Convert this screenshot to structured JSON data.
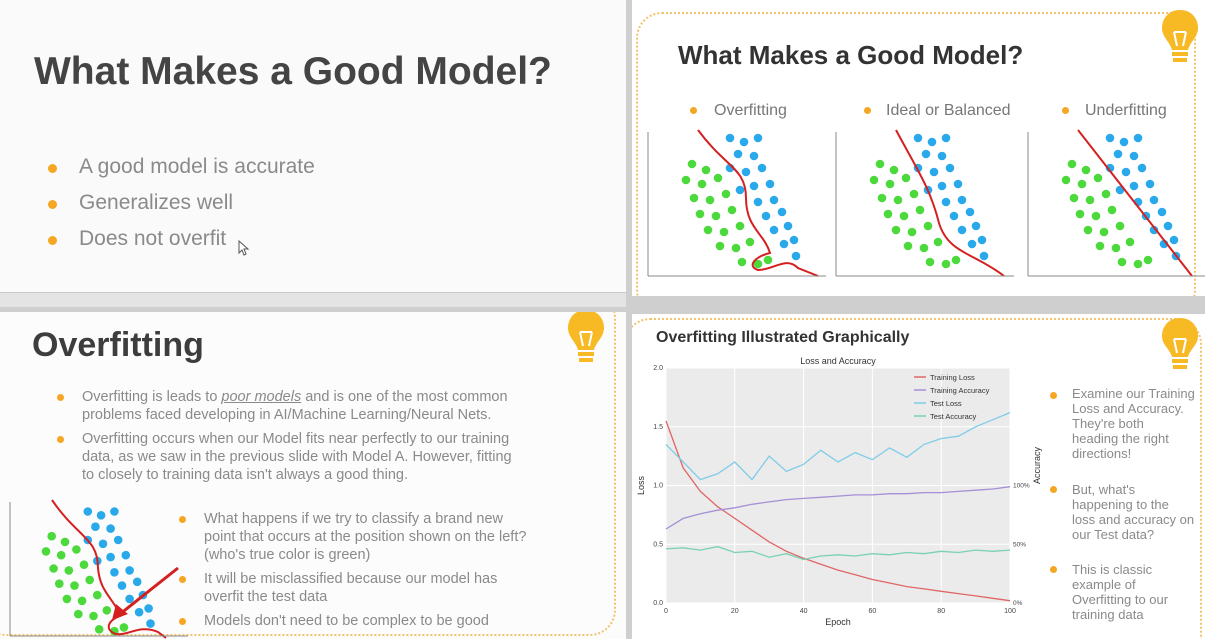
{
  "slide1": {
    "title": "What Makes a Good Model?",
    "bullets": [
      "A good model is accurate",
      "Generalizes well",
      "Does not overfit"
    ]
  },
  "slide2": {
    "title": "What Makes a Good Model?",
    "labels": [
      "Overfitting",
      "Ideal or Balanced",
      "Underfitting"
    ]
  },
  "slide3": {
    "title": "Overfitting",
    "bullet1_pre": "Overfitting is leads to ",
    "bullet1_link": "poor models",
    "bullet1_post": " and is one of the most common",
    "bullet1_line2": "problems faced developing in AI/Machine Learning/Neural Nets.",
    "bullet2_lines": [
      "Overfitting occurs when our Model fits near perfectly to our training",
      "data, as we saw in the previous slide with Model A. However, fitting",
      "to closely to training data isn't always a good thing."
    ],
    "sub1_lines": [
      "What happens if we try to classify a brand new",
      "point that occurs at the position shown on the left?",
      "(who's true color is green)"
    ],
    "sub2_lines": [
      "It will be misclassified because our model has",
      "overfit the test data"
    ],
    "sub3": "Models don't need to be complex to be good"
  },
  "slide4": {
    "title": "Overfitting Illustrated Graphically",
    "side_bullets": [
      [
        "Examine our Training",
        "Loss and Accuracy.",
        "They're both",
        "heading the right",
        "directions!"
      ],
      [
        "But, what's",
        "happening to the",
        "loss and accuracy on",
        "our Test data?"
      ],
      [
        "This is classic",
        "example of",
        "Overfitting to our",
        "training data"
      ]
    ]
  },
  "chart_data": {
    "type": "line",
    "title": "Loss and Accuracy",
    "xlabel": "Epoch",
    "ylabel": "Loss",
    "y2label": "Accuracy",
    "xlim": [
      0,
      100
    ],
    "ylim": [
      0,
      2.0
    ],
    "x_ticks": [
      "0",
      "20",
      "40",
      "60",
      "80",
      "100"
    ],
    "y_ticks": [
      "0.0",
      "0.5",
      "1.0",
      "1.5",
      "2.0"
    ],
    "y2_ticks": [
      "0%",
      "50%",
      "100%"
    ],
    "legend_position": "top-right",
    "grid": true,
    "x": [
      0,
      5,
      10,
      15,
      20,
      25,
      30,
      35,
      40,
      45,
      50,
      55,
      60,
      65,
      70,
      75,
      80,
      85,
      90,
      95,
      100
    ],
    "series": [
      {
        "name": "Training Loss",
        "color": "#e06666",
        "axis": "left",
        "values": [
          1.55,
          1.15,
          0.95,
          0.82,
          0.72,
          0.62,
          0.52,
          0.44,
          0.38,
          0.33,
          0.28,
          0.24,
          0.2,
          0.17,
          0.14,
          0.12,
          0.1,
          0.08,
          0.06,
          0.04,
          0.02
        ]
      },
      {
        "name": "Training Accuracy",
        "color": "#a58fd6",
        "axis": "right",
        "values": [
          0.63,
          0.72,
          0.76,
          0.79,
          0.81,
          0.84,
          0.86,
          0.88,
          0.89,
          0.9,
          0.91,
          0.92,
          0.92,
          0.93,
          0.93,
          0.94,
          0.94,
          0.95,
          0.96,
          0.97,
          0.99
        ]
      },
      {
        "name": "Test Loss",
        "color": "#7fcce8",
        "axis": "left",
        "values": [
          1.35,
          1.2,
          1.05,
          1.1,
          1.2,
          1.05,
          1.25,
          1.12,
          1.18,
          1.3,
          1.2,
          1.28,
          1.22,
          1.32,
          1.24,
          1.35,
          1.4,
          1.42,
          1.5,
          1.56,
          1.62
        ]
      },
      {
        "name": "Test Accuracy",
        "color": "#7ad1b4",
        "axis": "right",
        "values": [
          0.46,
          0.47,
          0.45,
          0.48,
          0.43,
          0.44,
          0.39,
          0.42,
          0.37,
          0.4,
          0.41,
          0.4,
          0.42,
          0.41,
          0.43,
          0.42,
          0.44,
          0.43,
          0.45,
          0.44,
          0.45
        ]
      }
    ]
  }
}
